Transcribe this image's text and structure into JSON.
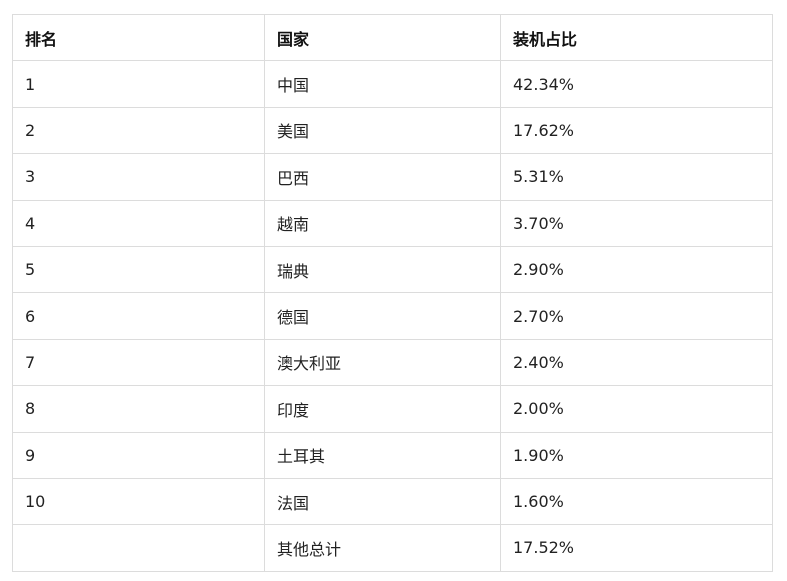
{
  "headers": [
    "排名",
    "国家",
    "装机占比"
  ],
  "rows": [
    [
      "1",
      "中国",
      "42.34%"
    ],
    [
      "2",
      "美国",
      "17.62%"
    ],
    [
      "3",
      "巴西",
      "5.31%"
    ],
    [
      "4",
      "越南",
      "3.70%"
    ],
    [
      "5",
      "瑞典",
      "2.90%"
    ],
    [
      "6",
      "德国",
      "2.70%"
    ],
    [
      "7",
      "澳大利亚",
      "2.40%"
    ],
    [
      "8",
      "印度",
      "2.00%"
    ],
    [
      "9",
      "土耳其",
      "1.90%"
    ],
    [
      "10",
      "法国",
      "1.60%"
    ],
    [
      "",
      "其他总计",
      "17.52%"
    ]
  ]
}
